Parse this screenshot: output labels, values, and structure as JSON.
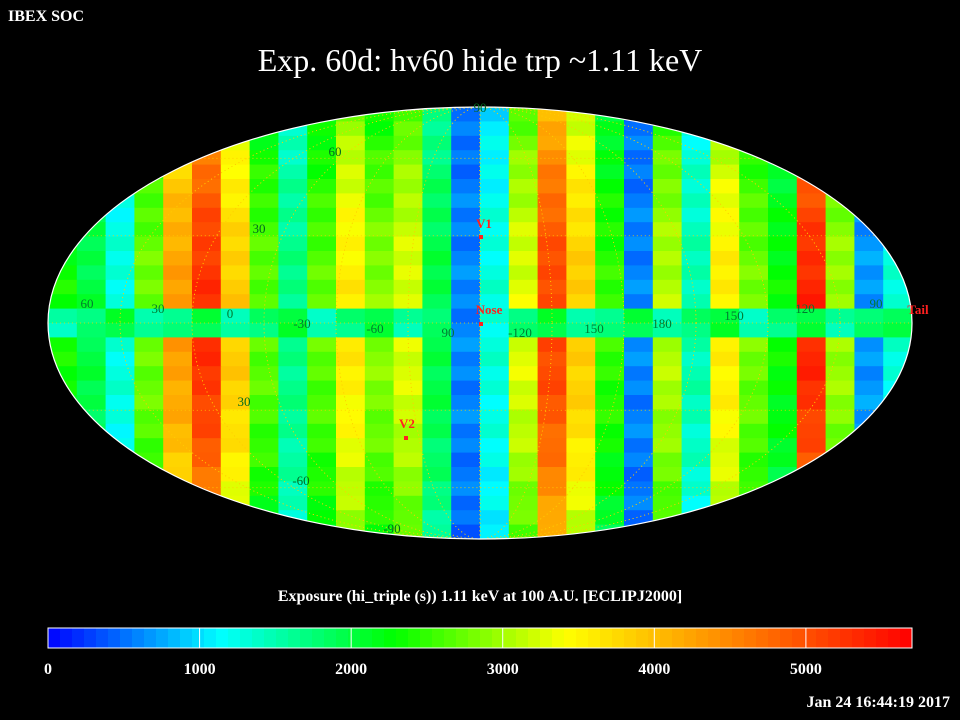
{
  "header": {
    "org_label": "IBEX SOC",
    "title": "Exp.   60d: hv60 hide trp ~1.11 keV",
    "timestamp": "Jan 24 16:44:19 2017"
  },
  "chart_data": {
    "type": "heatmap",
    "projection": "mollweide",
    "title": "Exp.   60d: hv60 hide trp ~1.11 keV",
    "colorbar_label": "Exposure (hi_triple (s))  1.11 keV at 100 A.U. [ECLIPJ2000]",
    "colorbar_ticks": [
      0,
      1000,
      2000,
      3000,
      4000,
      5000
    ],
    "value_range": [
      0,
      5700
    ],
    "colormap": [
      "#0000ff",
      "#00ffff",
      "#00ff00",
      "#ffff00",
      "#ff8000",
      "#ff0000"
    ],
    "grid": true,
    "grid_color": "#ffcc00",
    "outline_color": "#ffffff",
    "longitude_labels": [
      "60",
      "30",
      "0",
      "-30",
      "-60",
      "90",
      "-120",
      "150",
      "180",
      "150",
      "120",
      "90"
    ],
    "latitude_labels": [
      "90",
      "60",
      "30",
      "30",
      "-60",
      "-90"
    ],
    "pixel_columns": 30,
    "pixel_rows": 30,
    "column_exposure_s": [
      2350,
      2000,
      1300,
      2800,
      4300,
      5300,
      3900,
      2700,
      1700,
      2700,
      3600,
      2900,
      3300,
      2000,
      600,
      1300,
      3300,
      5100,
      3900,
      2500,
      600,
      3100,
      1500,
      3600,
      2800,
      2300,
      5400,
      3000,
      700,
      1300
    ],
    "equator_band_exposure_s": 1500,
    "markers": [
      {
        "label": "V1",
        "color": "#ff2020"
      },
      {
        "label": "Nose",
        "color": "#ff2020"
      },
      {
        "label": "V2",
        "color": "#ff2020"
      },
      {
        "label": "Tail",
        "color": "#ff2020"
      }
    ]
  }
}
